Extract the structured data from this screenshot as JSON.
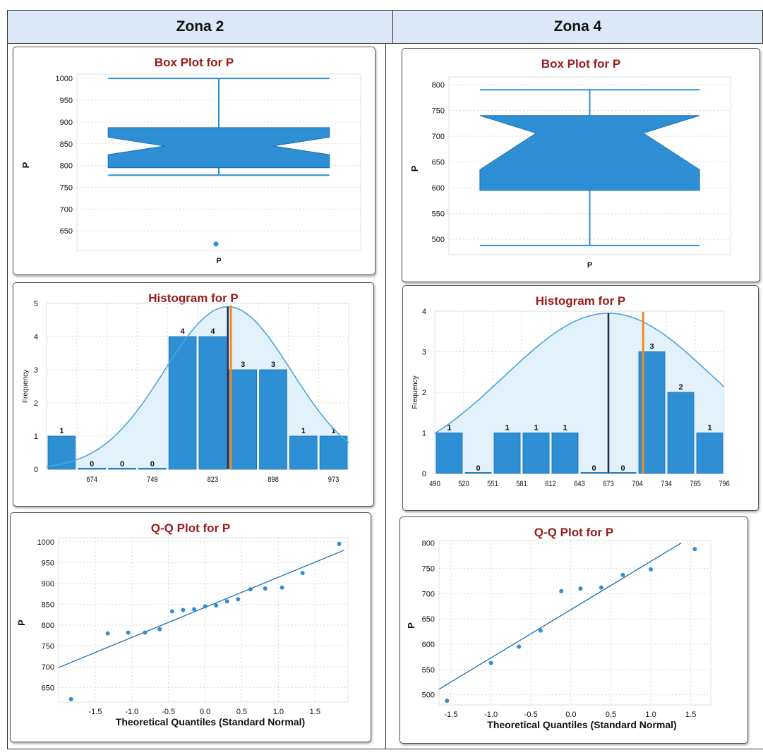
{
  "headers": [
    "Zona 2",
    "Zona 4"
  ],
  "colors": {
    "bar": "#2f8fd5",
    "bar_edge": "#1a6fb0",
    "title": "#9b1b1b",
    "curve": "#4aa6dd",
    "curve_fill": "#e3f1fb",
    "mean_line": "#1c2a55",
    "median_line": "#f08a1c",
    "grid": "#d9d9d9"
  },
  "chart_data": [
    {
      "id": "box-zona2",
      "type": "box",
      "title": "Box Plot for P",
      "xlabel": "P",
      "ylabel": "P",
      "ylim": [
        605,
        1010
      ],
      "yticks": [
        "1000",
        "950",
        "900",
        "850",
        "800",
        "750",
        "700",
        "650"
      ],
      "ytick_values": [
        1000,
        950,
        900,
        850,
        800,
        750,
        700,
        650
      ],
      "whisker_low": 778,
      "q1": 795,
      "notch_low": 825,
      "median": 845,
      "notch_high": 865,
      "q3": 887,
      "whisker_high": 1000,
      "outliers": [
        620
      ]
    },
    {
      "id": "box-zona4",
      "type": "box",
      "title": "Box Plot for P",
      "xlabel": "P",
      "ylabel": "P",
      "ylim": [
        470,
        815
      ],
      "yticks": [
        "800",
        "750",
        "700",
        "650",
        "600",
        "550",
        "500"
      ],
      "ytick_values": [
        800,
        750,
        700,
        650,
        600,
        550,
        500
      ],
      "whisker_low": 488,
      "q1": 595,
      "notch_low": 635,
      "median": 706,
      "notch_high": 740,
      "q3": 740,
      "whisker_high": 790,
      "outliers": []
    },
    {
      "id": "hist-zona2",
      "type": "bar",
      "title": "Histogram for P",
      "ylabel": "Frequency",
      "ylim": [
        0,
        5
      ],
      "yticks": [
        "5",
        "4",
        "3",
        "2",
        "1",
        "0"
      ],
      "ytick_values": [
        5,
        4,
        3,
        2,
        1,
        0
      ],
      "xticks": [
        "674",
        "749",
        "823",
        "898",
        "973"
      ],
      "xtick_bins": [
        1.5,
        3.5,
        5.5,
        7.5,
        9.5
      ],
      "values": [
        1,
        0,
        0,
        0,
        4,
        4,
        3,
        3,
        1,
        1
      ],
      "value_labels": [
        "1",
        "0",
        "0",
        "0",
        "4",
        "4",
        "3",
        "3",
        "1",
        "1"
      ],
      "mean_bin": 6.0,
      "median_bin": 6.1,
      "curve_peak": 4.9,
      "curve_center_bin": 6.0,
      "curve_sd_bins": 2.1
    },
    {
      "id": "hist-zona4",
      "type": "bar",
      "title": "Histogram for P",
      "ylabel": "Frequency",
      "ylim": [
        0,
        4
      ],
      "yticks": [
        "4",
        "3",
        "2",
        "1",
        "0"
      ],
      "ytick_values": [
        4,
        3,
        2,
        1,
        0
      ],
      "xticks": [
        "490",
        "520",
        "551",
        "581",
        "612",
        "643",
        "673",
        "704",
        "734",
        "765",
        "796"
      ],
      "xtick_bins": [
        0,
        1,
        2,
        3,
        4,
        5,
        6,
        7,
        8,
        9,
        10
      ],
      "values": [
        1,
        0,
        1,
        1,
        1,
        0,
        0,
        3,
        2,
        1
      ],
      "value_labels": [
        "1",
        "0",
        "1",
        "1",
        "1",
        "0",
        "0",
        "3",
        "2",
        "1"
      ],
      "mean_bin": 6.0,
      "median_bin": 7.2,
      "curve_peak": 3.95,
      "curve_center_bin": 6.0,
      "curve_sd_bins": 3.6
    },
    {
      "id": "qq-zona2",
      "type": "scatter",
      "title": "Q-Q Plot for P",
      "xlabel": "Theoretical Quantiles (Standard Normal)",
      "ylabel": "P",
      "xlim": [
        -2.0,
        1.95
      ],
      "ylim": [
        615,
        1010
      ],
      "xticks": [
        "-1.5",
        "-1.0",
        "-0.5",
        "0.0",
        "0.5",
        "1.0",
        "1.5"
      ],
      "xtick_values": [
        -1.5,
        -1.0,
        -0.5,
        0.0,
        0.5,
        1.0,
        1.5
      ],
      "yticks": [
        "1000",
        "950",
        "900",
        "850",
        "800",
        "750",
        "700",
        "650"
      ],
      "ytick_values": [
        1000,
        950,
        900,
        850,
        800,
        750,
        700,
        650
      ],
      "points": [
        [
          -1.83,
          622
        ],
        [
          -1.33,
          780
        ],
        [
          -1.05,
          782
        ],
        [
          -0.82,
          782
        ],
        [
          -0.62,
          790
        ],
        [
          -0.45,
          833
        ],
        [
          -0.3,
          836
        ],
        [
          -0.15,
          838
        ],
        [
          0.0,
          845
        ],
        [
          0.15,
          847
        ],
        [
          0.3,
          857
        ],
        [
          0.45,
          862
        ],
        [
          0.62,
          886
        ],
        [
          0.82,
          888
        ],
        [
          1.05,
          890
        ],
        [
          1.33,
          925
        ],
        [
          1.83,
          995
        ]
      ],
      "line": [
        [
          -2.0,
          698
        ],
        [
          1.9,
          980
        ]
      ]
    },
    {
      "id": "qq-zona4",
      "type": "scatter",
      "title": "Q-Q Plot for P",
      "xlabel": "Theoretical Quantiles (Standard Normal)",
      "ylabel": "P",
      "xlim": [
        -1.65,
        1.75
      ],
      "ylim": [
        480,
        805
      ],
      "xticks": [
        "-1.5",
        "-1.0",
        "-0.5",
        "0.0",
        "0.5",
        "1.0",
        "1.5"
      ],
      "xtick_values": [
        -1.5,
        -1.0,
        -0.5,
        0.0,
        0.5,
        1.0,
        1.5
      ],
      "yticks": [
        "800",
        "750",
        "700",
        "650",
        "600",
        "550",
        "500"
      ],
      "ytick_values": [
        800,
        750,
        700,
        650,
        600,
        550,
        500
      ],
      "points": [
        [
          -1.55,
          488
        ],
        [
          -1.0,
          563
        ],
        [
          -0.65,
          595
        ],
        [
          -0.38,
          627
        ],
        [
          -0.12,
          705
        ],
        [
          0.12,
          710
        ],
        [
          0.38,
          712
        ],
        [
          0.65,
          737
        ],
        [
          1.0,
          748
        ],
        [
          1.55,
          788
        ]
      ],
      "line": [
        [
          -1.65,
          511
        ],
        [
          1.38,
          800
        ]
      ]
    }
  ]
}
